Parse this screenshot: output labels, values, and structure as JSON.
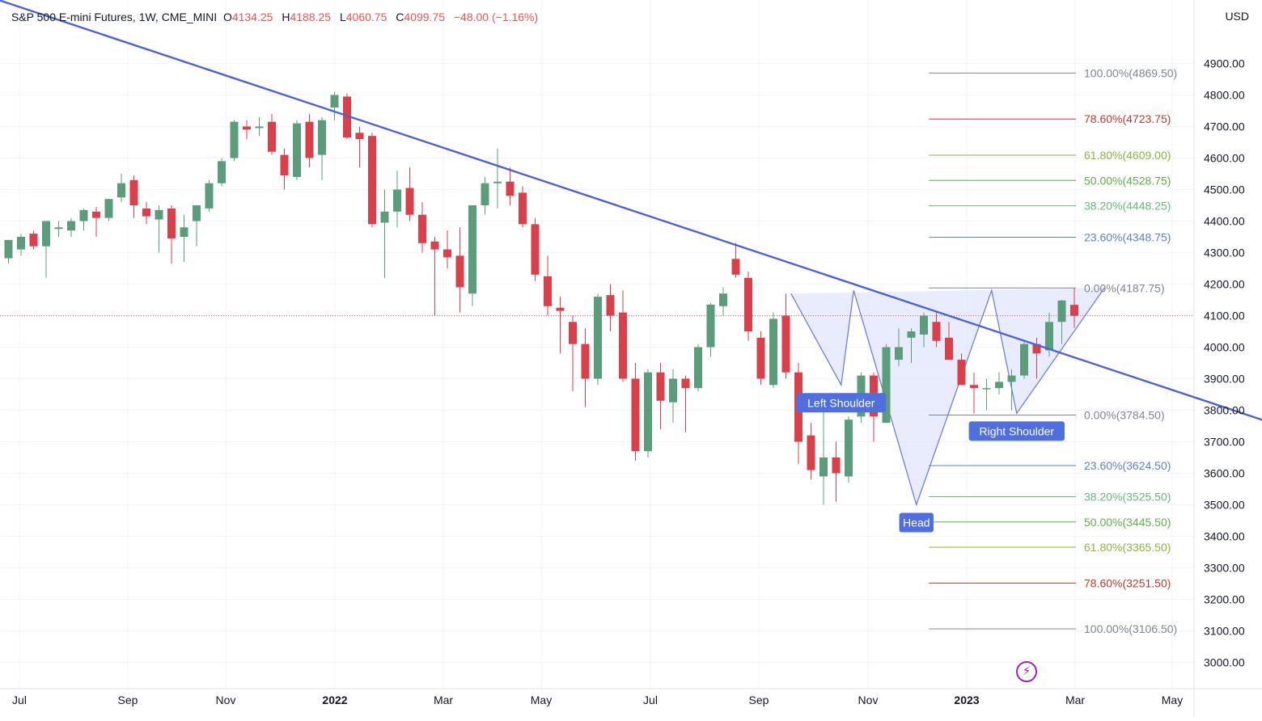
{
  "header": {
    "symbol": "S&P 500 E-mini Futures, 1W, CME_MINI",
    "open_label": "O",
    "open": "4134.25",
    "high_label": "H",
    "high": "4188.25",
    "low_label": "L",
    "low": "4060.75",
    "close_label": "C",
    "close": "4099.75",
    "change": "−48.00 (−1.16%)"
  },
  "currency": "USD",
  "colors": {
    "up": "#5b9c7b",
    "down": "#d9404a",
    "trend": "#4a63d9",
    "pattern": "#6f7fdc",
    "pattern_fill": "#dfe4fb",
    "label_bg": "#4f6fe0",
    "price_line": "#ef5350",
    "bolt": "#9c27b0"
  },
  "chart_data": {
    "type": "candlestick",
    "title": "S&P 500 E-mini Futures, 1W, CME_MINI",
    "y_axis": {
      "ylim": [
        2950,
        5050
      ],
      "ticks": [
        "3000.00",
        "3100.00",
        "3200.00",
        "3300.00",
        "3400.00",
        "3500.00",
        "3600.00",
        "3700.00",
        "3800.00",
        "3900.00",
        "4000.00",
        "4100.00",
        "4200.00",
        "4300.00",
        "4400.00",
        "4500.00",
        "4600.00",
        "4700.00",
        "4800.00",
        "4900.00"
      ],
      "currency": "USD"
    },
    "x_axis": {
      "ticks": [
        "Jul",
        "Sep",
        "Nov",
        "2022",
        "Mar",
        "May",
        "Jul",
        "Sep",
        "Nov",
        "2023",
        "Mar",
        "May"
      ],
      "bold_ticks": [
        "2022",
        "2023"
      ],
      "grid": true
    },
    "last_price": 4099.75,
    "candles": [
      {
        "o": 4282,
        "h": 4340,
        "l": 4265,
        "c": 4340
      },
      {
        "o": 4310,
        "h": 4360,
        "l": 4290,
        "c": 4350
      },
      {
        "o": 4360,
        "h": 4370,
        "l": 4310,
        "c": 4320
      },
      {
        "o": 4320,
        "h": 4390,
        "l": 4220,
        "c": 4400
      },
      {
        "o": 4375,
        "h": 4400,
        "l": 4350,
        "c": 4380
      },
      {
        "o": 4370,
        "h": 4410,
        "l": 4350,
        "c": 4400
      },
      {
        "o": 4400,
        "h": 4440,
        "l": 4370,
        "c": 4435
      },
      {
        "o": 4430,
        "h": 4445,
        "l": 4350,
        "c": 4410
      },
      {
        "o": 4410,
        "h": 4470,
        "l": 4400,
        "c": 4470
      },
      {
        "o": 4475,
        "h": 4550,
        "l": 4460,
        "c": 4520
      },
      {
        "o": 4530,
        "h": 4545,
        "l": 4410,
        "c": 4450
      },
      {
        "o": 4440,
        "h": 4460,
        "l": 4390,
        "c": 4415
      },
      {
        "o": 4405,
        "h": 4450,
        "l": 4300,
        "c": 4435
      },
      {
        "o": 4440,
        "h": 4450,
        "l": 4265,
        "c": 4345
      },
      {
        "o": 4350,
        "h": 4420,
        "l": 4270,
        "c": 4380
      },
      {
        "o": 4400,
        "h": 4450,
        "l": 4320,
        "c": 4450
      },
      {
        "o": 4440,
        "h": 4530,
        "l": 4430,
        "c": 4520
      },
      {
        "o": 4520,
        "h": 4600,
        "l": 4510,
        "c": 4590
      },
      {
        "o": 4600,
        "h": 4720,
        "l": 4590,
        "c": 4715
      },
      {
        "o": 4700,
        "h": 4720,
        "l": 4660,
        "c": 4690
      },
      {
        "o": 4695,
        "h": 4730,
        "l": 4670,
        "c": 4700
      },
      {
        "o": 4715,
        "h": 4740,
        "l": 4610,
        "c": 4620
      },
      {
        "o": 4610,
        "h": 4630,
        "l": 4500,
        "c": 4545
      },
      {
        "o": 4540,
        "h": 4720,
        "l": 4530,
        "c": 4710
      },
      {
        "o": 4715,
        "h": 4740,
        "l": 4570,
        "c": 4600
      },
      {
        "o": 4610,
        "h": 4730,
        "l": 4530,
        "c": 4720
      },
      {
        "o": 4760,
        "h": 4810,
        "l": 4720,
        "c": 4800
      },
      {
        "o": 4795,
        "h": 4805,
        "l": 4660,
        "c": 4665
      },
      {
        "o": 4680,
        "h": 4700,
        "l": 4570,
        "c": 4660
      },
      {
        "o": 4670,
        "h": 4680,
        "l": 4380,
        "c": 4390
      },
      {
        "o": 4395,
        "h": 4500,
        "l": 4220,
        "c": 4430
      },
      {
        "o": 4430,
        "h": 4560,
        "l": 4380,
        "c": 4500
      },
      {
        "o": 4505,
        "h": 4570,
        "l": 4400,
        "c": 4420
      },
      {
        "o": 4420,
        "h": 4460,
        "l": 4300,
        "c": 4330
      },
      {
        "o": 4335,
        "h": 4350,
        "l": 4100,
        "c": 4310
      },
      {
        "o": 4310,
        "h": 4370,
        "l": 4250,
        "c": 4285
      },
      {
        "o": 4290,
        "h": 4380,
        "l": 4110,
        "c": 4190
      },
      {
        "o": 4170,
        "h": 4450,
        "l": 4130,
        "c": 4450
      },
      {
        "o": 4450,
        "h": 4540,
        "l": 4420,
        "c": 4520
      },
      {
        "o": 4520,
        "h": 4630,
        "l": 4440,
        "c": 4525
      },
      {
        "o": 4525,
        "h": 4570,
        "l": 4450,
        "c": 4480
      },
      {
        "o": 4490,
        "h": 4510,
        "l": 4380,
        "c": 4390
      },
      {
        "o": 4390,
        "h": 4410,
        "l": 4210,
        "c": 4230
      },
      {
        "o": 4225,
        "h": 4290,
        "l": 4100,
        "c": 4130
      },
      {
        "o": 4125,
        "h": 4160,
        "l": 3980,
        "c": 4115
      },
      {
        "o": 4080,
        "h": 4100,
        "l": 3860,
        "c": 4010
      },
      {
        "o": 4010,
        "h": 4060,
        "l": 3810,
        "c": 3900
      },
      {
        "o": 3900,
        "h": 4170,
        "l": 3880,
        "c": 4160
      },
      {
        "o": 4165,
        "h": 4200,
        "l": 4050,
        "c": 4100
      },
      {
        "o": 4110,
        "h": 4180,
        "l": 3890,
        "c": 3900
      },
      {
        "o": 3900,
        "h": 3950,
        "l": 3640,
        "c": 3670
      },
      {
        "o": 3670,
        "h": 3930,
        "l": 3650,
        "c": 3920
      },
      {
        "o": 3920,
        "h": 3950,
        "l": 3740,
        "c": 3830
      },
      {
        "o": 3825,
        "h": 3930,
        "l": 3760,
        "c": 3900
      },
      {
        "o": 3900,
        "h": 3910,
        "l": 3730,
        "c": 3870
      },
      {
        "o": 3870,
        "h": 4010,
        "l": 3860,
        "c": 4000
      },
      {
        "o": 4000,
        "h": 4140,
        "l": 3970,
        "c": 4135
      },
      {
        "o": 4130,
        "h": 4190,
        "l": 4100,
        "c": 4170
      },
      {
        "o": 4280,
        "h": 4330,
        "l": 4220,
        "c": 4230
      },
      {
        "o": 4220,
        "h": 4240,
        "l": 4020,
        "c": 4050
      },
      {
        "o": 4030,
        "h": 4050,
        "l": 3880,
        "c": 3900
      },
      {
        "o": 3880,
        "h": 4110,
        "l": 3870,
        "c": 4090
      },
      {
        "o": 4100,
        "h": 4170,
        "l": 3900,
        "c": 3920
      },
      {
        "o": 3920,
        "h": 3950,
        "l": 3630,
        "c": 3700
      },
      {
        "o": 3720,
        "h": 3760,
        "l": 3580,
        "c": 3610
      },
      {
        "o": 3590,
        "h": 3830,
        "l": 3500,
        "c": 3650
      },
      {
        "o": 3650,
        "h": 3700,
        "l": 3510,
        "c": 3600
      },
      {
        "o": 3590,
        "h": 3780,
        "l": 3570,
        "c": 3770
      },
      {
        "o": 3780,
        "h": 3920,
        "l": 3760,
        "c": 3910
      },
      {
        "o": 3910,
        "h": 3920,
        "l": 3700,
        "c": 3780
      },
      {
        "o": 3760,
        "h": 4010,
        "l": 3760,
        "c": 4000
      },
      {
        "o": 3960,
        "h": 4060,
        "l": 3940,
        "c": 4000
      },
      {
        "o": 4030,
        "h": 4060,
        "l": 3950,
        "c": 4050
      },
      {
        "o": 4040,
        "h": 4110,
        "l": 4000,
        "c": 4100
      },
      {
        "o": 4080,
        "h": 4110,
        "l": 4000,
        "c": 4020
      },
      {
        "o": 4030,
        "h": 4080,
        "l": 3960,
        "c": 3960
      },
      {
        "o": 3960,
        "h": 3980,
        "l": 3880,
        "c": 3880
      },
      {
        "o": 3880,
        "h": 3920,
        "l": 3790,
        "c": 3870
      },
      {
        "o": 3870,
        "h": 3900,
        "l": 3800,
        "c": 3870
      },
      {
        "o": 3870,
        "h": 3920,
        "l": 3850,
        "c": 3890
      },
      {
        "o": 3890,
        "h": 3930,
        "l": 3800,
        "c": 3910
      },
      {
        "o": 3910,
        "h": 4020,
        "l": 3900,
        "c": 4010
      },
      {
        "o": 4010,
        "h": 4030,
        "l": 3900,
        "c": 3980
      },
      {
        "o": 3990,
        "h": 4110,
        "l": 3970,
        "c": 4080
      },
      {
        "o": 4080,
        "h": 4150,
        "l": 4010,
        "c": 4148
      },
      {
        "o": 4134.25,
        "h": 4188.25,
        "l": 4060.75,
        "c": 4099.75
      }
    ],
    "trendline": {
      "points": [
        {
          "date": "2021-06-01",
          "price": 5110
        },
        {
          "date": "2023-05-25",
          "price": 3745
        }
      ]
    },
    "pattern": {
      "points": [
        {
          "date": "2022-08-22",
          "price": 4170
        },
        {
          "date": "2022-09-19",
          "price": 3880
        },
        {
          "date": "2022-09-26",
          "price": 4180
        },
        {
          "date": "2022-10-31",
          "price": 3500
        },
        {
          "date": "2022-12-12",
          "price": 4180
        },
        {
          "date": "2022-12-26",
          "price": 3790
        },
        {
          "date": "2023-02-13",
          "price": 4188
        }
      ],
      "labels": [
        {
          "text": "Left Shoulder",
          "date": "2022-09-19",
          "price": 3880
        },
        {
          "text": "Head",
          "date": "2022-10-31",
          "price": 3500
        },
        {
          "text": "Right Shoulder",
          "date": "2022-12-26",
          "price": 3790
        }
      ]
    },
    "fibonacci": [
      {
        "start_date": "2022-11-07",
        "end_date": "2023-05-01",
        "levels": [
          {
            "pct": "100.00%",
            "value": 4869.5,
            "color": "#808591"
          },
          {
            "pct": "78.60%",
            "value": 4723.75,
            "color": "#c0392b"
          },
          {
            "pct": "61.80%",
            "value": 4609.0,
            "color": "#8db33a"
          },
          {
            "pct": "50.00%",
            "value": 4528.75,
            "color": "#5fae4a"
          },
          {
            "pct": "38.20%",
            "value": 4448.25,
            "color": "#67b87f"
          },
          {
            "pct": "23.60%",
            "value": 4348.75,
            "color": "#5b84b8"
          },
          {
            "pct": "0.00%",
            "value": 4187.75,
            "color": "#808591"
          }
        ]
      },
      {
        "start_date": "2022-11-07",
        "end_date": "2023-05-01",
        "levels": [
          {
            "pct": "0.00%",
            "value": 3784.5,
            "color": "#808591"
          },
          {
            "pct": "23.60%",
            "value": 3624.5,
            "color": "#5b84b8"
          },
          {
            "pct": "38.20%",
            "value": 3525.5,
            "color": "#67b87f"
          },
          {
            "pct": "50.00%",
            "value": 3445.5,
            "color": "#5fae4a"
          },
          {
            "pct": "61.80%",
            "value": 3365.5,
            "color": "#8db33a"
          },
          {
            "pct": "78.60%",
            "value": 3251.5,
            "color": "#c0392b"
          },
          {
            "pct": "100.00%",
            "value": 3106.5,
            "color": "#808591"
          }
        ]
      }
    ]
  }
}
